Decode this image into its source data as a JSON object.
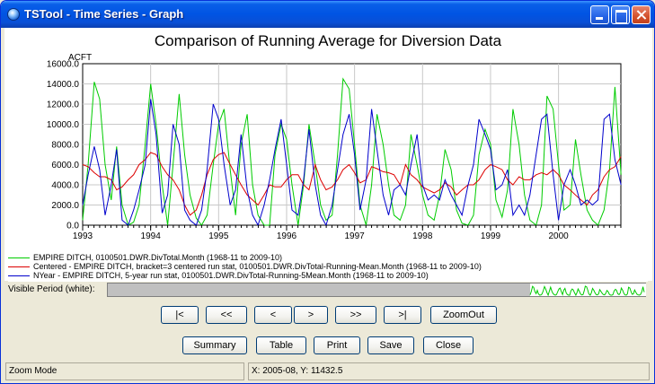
{
  "window": {
    "title": "TSTool - Time Series - Graph"
  },
  "chart_data": {
    "type": "line",
    "title": "Comparison of Running Average for Diversion Data",
    "ylabel": "ACFT",
    "xlabel": "",
    "ylim": [
      0,
      16000
    ],
    "xlim": [
      1993,
      2000.917
    ],
    "y_ticks": [
      "0.0",
      "2000.0",
      "4000.0",
      "6000.0",
      "8000.0",
      "10000.0",
      "12000.0",
      "14000.0",
      "16000.0"
    ],
    "x_ticks": [
      "1993",
      "1994",
      "1995",
      "1996",
      "1997",
      "1998",
      "1999",
      "2000"
    ],
    "grid": true,
    "series": [
      {
        "name": "EMPIRE DITCH, 0100501.DWR.DivTotal.Month (1968-11 to 2009-10)",
        "color": "#00cc00",
        "values": [
          [
            1993.0,
            500
          ],
          [
            1993.08,
            6000
          ],
          [
            1993.17,
            14200
          ],
          [
            1993.25,
            12500
          ],
          [
            1993.33,
            6000
          ],
          [
            1993.42,
            2500
          ],
          [
            1993.5,
            7800
          ],
          [
            1993.58,
            2000
          ],
          [
            1993.67,
            0
          ],
          [
            1993.75,
            300
          ],
          [
            1993.83,
            2000
          ],
          [
            1993.92,
            8000
          ],
          [
            1994.0,
            14000
          ],
          [
            1994.08,
            10000
          ],
          [
            1994.17,
            4000
          ],
          [
            1994.25,
            0
          ],
          [
            1994.33,
            6000
          ],
          [
            1994.42,
            13000
          ],
          [
            1994.5,
            7000
          ],
          [
            1994.58,
            3000
          ],
          [
            1994.67,
            700
          ],
          [
            1994.75,
            0
          ],
          [
            1994.83,
            1000
          ],
          [
            1994.92,
            6000
          ],
          [
            1995.0,
            10000
          ],
          [
            1995.08,
            11500
          ],
          [
            1995.17,
            5500
          ],
          [
            1995.25,
            1000
          ],
          [
            1995.33,
            8000
          ],
          [
            1995.42,
            11000
          ],
          [
            1995.5,
            4000
          ],
          [
            1995.58,
            1000
          ],
          [
            1995.67,
            0
          ],
          [
            1995.75,
            0
          ],
          [
            1995.83,
            7000
          ],
          [
            1995.92,
            10000
          ],
          [
            1996.0,
            8500
          ],
          [
            1996.08,
            4000
          ],
          [
            1996.17,
            0
          ],
          [
            1996.25,
            4000
          ],
          [
            1996.33,
            10000
          ],
          [
            1996.42,
            6000
          ],
          [
            1996.5,
            2000
          ],
          [
            1996.58,
            500
          ],
          [
            1996.67,
            1000
          ],
          [
            1996.75,
            7000
          ],
          [
            1996.83,
            14500
          ],
          [
            1996.92,
            13500
          ],
          [
            1997.0,
            8000
          ],
          [
            1997.08,
            2000
          ],
          [
            1997.17,
            0
          ],
          [
            1997.25,
            4000
          ],
          [
            1997.33,
            11000
          ],
          [
            1997.42,
            8000
          ],
          [
            1997.5,
            4000
          ],
          [
            1997.58,
            1000
          ],
          [
            1997.67,
            500
          ],
          [
            1997.75,
            2000
          ],
          [
            1997.83,
            9000
          ],
          [
            1997.92,
            6000
          ],
          [
            1998.0,
            3000
          ],
          [
            1998.08,
            1000
          ],
          [
            1998.17,
            500
          ],
          [
            1998.25,
            3000
          ],
          [
            1998.33,
            7500
          ],
          [
            1998.42,
            5500
          ],
          [
            1998.5,
            1500
          ],
          [
            1998.58,
            200
          ],
          [
            1998.67,
            0
          ],
          [
            1998.75,
            1000
          ],
          [
            1998.83,
            7000
          ],
          [
            1998.92,
            9500
          ],
          [
            1999.0,
            8000
          ],
          [
            1999.08,
            2500
          ],
          [
            1999.17,
            800
          ],
          [
            1999.25,
            3500
          ],
          [
            1999.33,
            11500
          ],
          [
            1999.42,
            8000
          ],
          [
            1999.5,
            3000
          ],
          [
            1999.58,
            500
          ],
          [
            1999.67,
            0
          ],
          [
            1999.75,
            2000
          ],
          [
            1999.83,
            12800
          ],
          [
            1999.92,
            11500
          ],
          [
            2000.0,
            6000
          ],
          [
            2000.08,
            1500
          ],
          [
            2000.17,
            2000
          ],
          [
            2000.25,
            8500
          ],
          [
            2000.33,
            5000
          ],
          [
            2000.42,
            1500
          ],
          [
            2000.5,
            500
          ],
          [
            2000.58,
            0
          ],
          [
            2000.67,
            1500
          ],
          [
            2000.75,
            5500
          ],
          [
            2000.83,
            13700
          ],
          [
            2000.92,
            5000
          ]
        ]
      },
      {
        "name": "Centered - EMPIRE DITCH, bracket=3 centered run stat, 0100501.DWR.DivTotal-Running-Mean.Month (1968-11 to 2009-10)",
        "color": "#dd0000",
        "values": [
          [
            1993.0,
            6000
          ],
          [
            1993.08,
            5800
          ],
          [
            1993.17,
            5200
          ],
          [
            1993.25,
            4800
          ],
          [
            1993.33,
            4800
          ],
          [
            1993.42,
            4500
          ],
          [
            1993.5,
            3500
          ],
          [
            1993.58,
            3800
          ],
          [
            1993.67,
            4500
          ],
          [
            1993.75,
            5000
          ],
          [
            1993.83,
            6000
          ],
          [
            1993.92,
            6500
          ],
          [
            1994.0,
            7200
          ],
          [
            1994.08,
            7000
          ],
          [
            1994.17,
            5800
          ],
          [
            1994.25,
            5000
          ],
          [
            1994.33,
            4500
          ],
          [
            1994.42,
            3500
          ],
          [
            1994.5,
            2000
          ],
          [
            1994.58,
            1000
          ],
          [
            1994.67,
            1500
          ],
          [
            1994.75,
            3000
          ],
          [
            1994.83,
            5000
          ],
          [
            1994.92,
            6500
          ],
          [
            1995.0,
            7000
          ],
          [
            1995.08,
            7200
          ],
          [
            1995.17,
            6000
          ],
          [
            1995.25,
            5000
          ],
          [
            1995.33,
            4000
          ],
          [
            1995.42,
            3000
          ],
          [
            1995.5,
            2500
          ],
          [
            1995.58,
            2000
          ],
          [
            1995.67,
            3000
          ],
          [
            1995.75,
            4000
          ],
          [
            1995.83,
            3800
          ],
          [
            1995.92,
            3800
          ],
          [
            1996.0,
            4500
          ],
          [
            1996.08,
            5000
          ],
          [
            1996.17,
            5000
          ],
          [
            1996.25,
            4000
          ],
          [
            1996.33,
            3500
          ],
          [
            1996.42,
            6000
          ],
          [
            1996.5,
            4500
          ],
          [
            1996.58,
            3500
          ],
          [
            1996.67,
            3800
          ],
          [
            1996.75,
            4500
          ],
          [
            1996.83,
            5500
          ],
          [
            1996.92,
            6000
          ],
          [
            1997.0,
            5200
          ],
          [
            1997.08,
            4200
          ],
          [
            1997.17,
            4500
          ],
          [
            1997.25,
            5800
          ],
          [
            1997.33,
            5600
          ],
          [
            1997.42,
            5300
          ],
          [
            1997.5,
            5200
          ],
          [
            1997.58,
            5000
          ],
          [
            1997.67,
            4000
          ],
          [
            1997.75,
            6000
          ],
          [
            1997.83,
            5000
          ],
          [
            1997.92,
            4500
          ],
          [
            1998.0,
            3800
          ],
          [
            1998.08,
            3500
          ],
          [
            1998.17,
            3200
          ],
          [
            1998.25,
            3500
          ],
          [
            1998.33,
            4200
          ],
          [
            1998.42,
            3800
          ],
          [
            1998.5,
            3000
          ],
          [
            1998.58,
            3500
          ],
          [
            1998.67,
            4000
          ],
          [
            1998.75,
            4000
          ],
          [
            1998.83,
            4500
          ],
          [
            1998.92,
            5500
          ],
          [
            1999.0,
            6000
          ],
          [
            1999.08,
            5800
          ],
          [
            1999.17,
            5500
          ],
          [
            1999.25,
            4500
          ],
          [
            1999.33,
            4000
          ],
          [
            1999.42,
            4800
          ],
          [
            1999.5,
            4500
          ],
          [
            1999.58,
            4500
          ],
          [
            1999.67,
            5000
          ],
          [
            1999.75,
            5200
          ],
          [
            1999.83,
            5000
          ],
          [
            1999.92,
            5500
          ],
          [
            2000.0,
            5000
          ],
          [
            2000.08,
            4000
          ],
          [
            2000.17,
            3500
          ],
          [
            2000.25,
            3000
          ],
          [
            2000.33,
            2500
          ],
          [
            2000.42,
            2000
          ],
          [
            2000.5,
            3000
          ],
          [
            2000.58,
            3500
          ],
          [
            2000.67,
            4800
          ],
          [
            2000.75,
            5500
          ],
          [
            2000.83,
            5800
          ],
          [
            2000.92,
            6800
          ]
        ]
      },
      {
        "name": "NYear - EMPIRE DITCH, 5-year run stat, 0100501.DWR.DivTotal-Running-5Mean.Month (1968-11 to 2009-10)",
        "color": "#0000cc",
        "values": [
          [
            1993.0,
            2000
          ],
          [
            1993.08,
            5000
          ],
          [
            1993.17,
            7800
          ],
          [
            1993.25,
            5500
          ],
          [
            1993.33,
            1000
          ],
          [
            1993.42,
            4000
          ],
          [
            1993.5,
            7500
          ],
          [
            1993.58,
            500
          ],
          [
            1993.67,
            0
          ],
          [
            1993.75,
            1500
          ],
          [
            1993.83,
            3500
          ],
          [
            1993.92,
            6000
          ],
          [
            1994.0,
            12500
          ],
          [
            1994.08,
            9000
          ],
          [
            1994.17,
            1200
          ],
          [
            1994.25,
            3000
          ],
          [
            1994.33,
            10000
          ],
          [
            1994.42,
            8000
          ],
          [
            1994.5,
            1500
          ],
          [
            1994.58,
            500
          ],
          [
            1994.67,
            0
          ],
          [
            1994.75,
            1500
          ],
          [
            1994.83,
            5500
          ],
          [
            1994.92,
            12000
          ],
          [
            1995.0,
            10500
          ],
          [
            1995.08,
            6000
          ],
          [
            1995.17,
            2000
          ],
          [
            1995.25,
            3500
          ],
          [
            1995.33,
            9000
          ],
          [
            1995.42,
            3500
          ],
          [
            1995.5,
            1000
          ],
          [
            1995.58,
            0
          ],
          [
            1995.67,
            2000
          ],
          [
            1995.75,
            4500
          ],
          [
            1995.83,
            7500
          ],
          [
            1995.92,
            10500
          ],
          [
            1996.0,
            6000
          ],
          [
            1996.08,
            1500
          ],
          [
            1996.17,
            1000
          ],
          [
            1996.25,
            4500
          ],
          [
            1996.33,
            9500
          ],
          [
            1996.42,
            4000
          ],
          [
            1996.5,
            1000
          ],
          [
            1996.58,
            0
          ],
          [
            1996.67,
            2000
          ],
          [
            1996.75,
            5500
          ],
          [
            1996.83,
            9000
          ],
          [
            1996.92,
            11000
          ],
          [
            1997.0,
            7000
          ],
          [
            1997.08,
            1500
          ],
          [
            1997.17,
            4500
          ],
          [
            1997.25,
            11500
          ],
          [
            1997.33,
            7500
          ],
          [
            1997.42,
            3000
          ],
          [
            1997.5,
            1000
          ],
          [
            1997.58,
            3500
          ],
          [
            1997.67,
            4000
          ],
          [
            1997.75,
            3000
          ],
          [
            1997.83,
            6000
          ],
          [
            1997.92,
            9000
          ],
          [
            1998.0,
            4000
          ],
          [
            1998.08,
            2500
          ],
          [
            1998.17,
            3000
          ],
          [
            1998.25,
            2500
          ],
          [
            1998.33,
            4500
          ],
          [
            1998.42,
            3000
          ],
          [
            1998.5,
            2000
          ],
          [
            1998.58,
            1000
          ],
          [
            1998.67,
            4000
          ],
          [
            1998.75,
            6000
          ],
          [
            1998.83,
            10500
          ],
          [
            1998.92,
            9000
          ],
          [
            1999.0,
            7500
          ],
          [
            1999.08,
            3500
          ],
          [
            1999.17,
            4000
          ],
          [
            1999.25,
            5500
          ],
          [
            1999.33,
            1000
          ],
          [
            1999.42,
            2000
          ],
          [
            1999.5,
            1000
          ],
          [
            1999.58,
            3000
          ],
          [
            1999.67,
            7000
          ],
          [
            1999.75,
            10500
          ],
          [
            1999.83,
            11000
          ],
          [
            1999.92,
            5000
          ],
          [
            2000.0,
            500
          ],
          [
            2000.08,
            4000
          ],
          [
            2000.17,
            5500
          ],
          [
            2000.25,
            4000
          ],
          [
            2000.33,
            2000
          ],
          [
            2000.42,
            2500
          ],
          [
            2000.5,
            2000
          ],
          [
            2000.58,
            2500
          ],
          [
            2000.67,
            10500
          ],
          [
            2000.75,
            11000
          ],
          [
            2000.83,
            6500
          ],
          [
            2000.92,
            4000
          ]
        ]
      }
    ]
  },
  "visible_period": {
    "label": "Visible Period (white):"
  },
  "nav_buttons": {
    "first": "|<",
    "prev_page": "<<",
    "prev": "<",
    "next": ">",
    "next_page": ">>",
    "last": ">|",
    "zoom_out": "ZoomOut"
  },
  "action_buttons": {
    "summary": "Summary",
    "table": "Table",
    "print": "Print",
    "save": "Save",
    "close": "Close"
  },
  "status": {
    "mode": "Zoom Mode",
    "coords": "X:  2005-08,  Y:  11432.5"
  }
}
